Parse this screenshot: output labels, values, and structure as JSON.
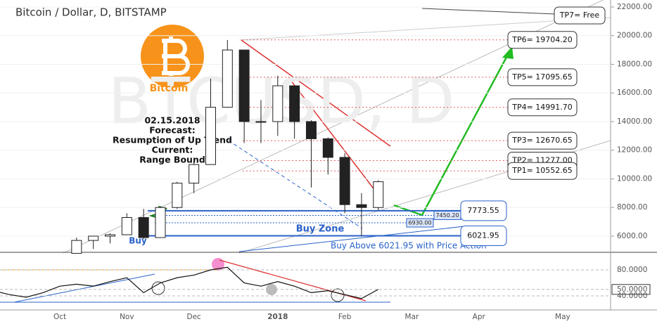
{
  "chart_data": {
    "type": "candlestick",
    "title": "Bitcoin / Dollar, D, BITSTAMP",
    "watermark": "BTCUSD, D",
    "logo_text": "Bitcoin",
    "categories": [
      null,
      null,
      null,
      null,
      "Oct",
      null,
      null,
      null,
      "Nov",
      null,
      null,
      null,
      "Dec",
      null,
      null,
      null,
      null,
      "2018",
      null,
      null,
      null,
      "Feb",
      null,
      null,
      null,
      "Mar",
      null,
      null,
      null,
      "Apr",
      null,
      null,
      null,
      null,
      "May",
      null,
      null,
      null
    ],
    "open": [
      null,
      null,
      null,
      null,
      null,
      4800,
      5700,
      6000,
      6100,
      7300,
      5900,
      8000,
      9700,
      11000,
      15000,
      19000,
      14000,
      14000,
      16500,
      14000,
      12800,
      11500,
      8200,
      8000,
      null,
      null,
      null,
      null,
      null,
      null,
      null,
      null,
      null,
      null,
      null,
      null,
      null,
      null
    ],
    "high": [
      null,
      null,
      null,
      null,
      null,
      5900,
      6000,
      6200,
      7600,
      7900,
      8100,
      9800,
      11400,
      17000,
      19700,
      19000,
      15500,
      17200,
      16500,
      14100,
      12900,
      11800,
      9000,
      9900,
      null,
      null,
      null,
      null,
      null,
      null,
      null,
      null,
      null,
      null,
      null,
      null,
      null,
      null
    ],
    "low": [
      null,
      null,
      null,
      null,
      null,
      4800,
      5100,
      5500,
      6100,
      5800,
      5900,
      7900,
      9000,
      11000,
      15000,
      12500,
      12500,
      13000,
      12800,
      9400,
      10300,
      7600,
      6000,
      7800,
      null,
      null,
      null,
      null,
      null,
      null,
      null,
      null,
      null,
      null,
      null,
      null,
      null,
      null
    ],
    "close": [
      null,
      null,
      null,
      null,
      null,
      5700,
      6000,
      6100,
      7300,
      5900,
      8000,
      9700,
      11000,
      15000,
      19000,
      14000,
      14000,
      16500,
      14000,
      12800,
      11500,
      8200,
      8000,
      9800,
      null,
      null,
      null,
      null,
      null,
      null,
      null,
      null,
      null,
      null,
      null,
      null,
      null,
      null
    ],
    "ylim": [
      4920,
      22490
    ],
    "yticks": [
      {
        "value": 6000,
        "label": "6000.00"
      },
      {
        "value": 8000,
        "label": "8000.00"
      },
      {
        "value": 10000,
        "label": "10000.00"
      },
      {
        "value": 12000,
        "label": "12000.00"
      },
      {
        "value": 14000,
        "label": "14000.00"
      },
      {
        "value": 16000,
        "label": "16000.00"
      },
      {
        "value": 18000,
        "label": "18000.00"
      },
      {
        "value": 20000,
        "label": "20000.00"
      },
      {
        "value": 22000,
        "label": "22000.00"
      }
    ],
    "targets": [
      {
        "label": "TP7= Free"
      },
      {
        "label": "TP6= 19704.20",
        "value": 19704.2
      },
      {
        "label": "TP5= 17095.65",
        "value": 17095.65
      },
      {
        "label": "TP4= 14991.70",
        "value": 14991.7
      },
      {
        "label": "TP3= 12670.65",
        "value": 12670.65
      },
      {
        "label": "TP2= 11277.00",
        "value": 11277
      },
      {
        "label": "TP1= 10552.65",
        "value": 10552.65
      }
    ],
    "supports": [
      {
        "value": 7773.55,
        "label": "7773.55"
      },
      {
        "value": 6021.95,
        "label": "6021.95"
      }
    ],
    "minor_levels": [
      {
        "value": 7450.2,
        "label": "7450.20"
      },
      {
        "value": 6930,
        "label": "6930.00"
      }
    ],
    "forecast": [
      "02.15.2018",
      "Forecast:",
      "Resumption of Up Trend",
      "Current:",
      "Range Bound"
    ],
    "buy_zone": "Buy Zone",
    "buy": "Buy",
    "buy_note": "Buy Above  6021.95 with Price Action",
    "oscillator": {
      "type": "line",
      "color": "#111111",
      "values": [
        48,
        42,
        38,
        45,
        55,
        58,
        55,
        62,
        68,
        45,
        60,
        68,
        72,
        80,
        84,
        60,
        55,
        62,
        55,
        45,
        48,
        42,
        36,
        50,
        null,
        null,
        null,
        null,
        null,
        null,
        null,
        null,
        null,
        null,
        null,
        null,
        null,
        null
      ],
      "ylim": [
        19.5,
        103.8
      ],
      "yticks": [
        {
          "value": 80,
          "label": "80.0000"
        },
        {
          "value": 50,
          "label": "50.0000"
        },
        {
          "value": 40,
          "label": "40.0000"
        }
      ]
    }
  }
}
